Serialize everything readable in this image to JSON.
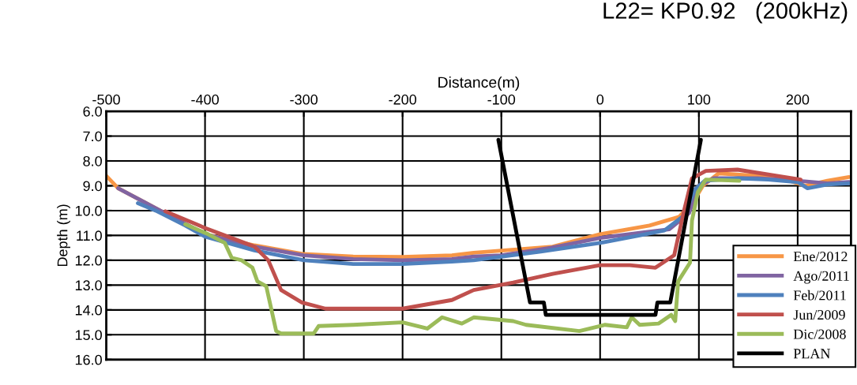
{
  "chart_data": {
    "type": "line",
    "title": "L22= KP0.92   (200kHz)",
    "xlabel": "Distance(m)",
    "ylabel": "Depth (m)",
    "xlim": [
      -500,
      254
    ],
    "xticks": [
      -500,
      -400,
      -300,
      -200,
      -100,
      0,
      100,
      200
    ],
    "ylim": [
      16,
      6
    ],
    "yticks": [
      {
        "value": 6,
        "label": "6.0"
      },
      {
        "value": 7,
        "label": "7.0"
      },
      {
        "value": 8,
        "label": "8.0"
      },
      {
        "value": 9,
        "label": "9.0"
      },
      {
        "value": 10,
        "label": "10.0"
      },
      {
        "value": 11,
        "label": "11.0"
      },
      {
        "value": 12,
        "label": "12.0"
      },
      {
        "value": 13,
        "label": "13.0"
      },
      {
        "value": 14,
        "label": "14.0"
      },
      {
        "value": 15,
        "label": "15.0"
      },
      {
        "value": 16,
        "label": "16.0"
      }
    ],
    "grid": true,
    "legend": "bottom right",
    "marker": "none",
    "line_style": "solid",
    "series": [
      {
        "name": "Ene/2012",
        "color": "#f79646",
        "x": [
          -500,
          -488,
          -450,
          -400,
          -350,
          -300,
          -250,
          -200,
          -150,
          -128,
          -48,
          0,
          50,
          80,
          95,
          104,
          120,
          160,
          192,
          208,
          230,
          252
        ],
        "values": [
          8.6,
          9.1,
          9.9,
          10.95,
          11.4,
          11.75,
          11.85,
          11.87,
          11.8,
          11.7,
          11.45,
          10.95,
          10.6,
          10.25,
          9.6,
          9.0,
          8.5,
          8.6,
          8.8,
          9.0,
          8.8,
          8.65
        ]
      },
      {
        "name": "Ago/2011",
        "color": "#8064a2",
        "x": [
          -488,
          -450,
          -400,
          -350,
          -300,
          -250,
          -200,
          -150,
          -128,
          -100,
          -50,
          0,
          40,
          70,
          90,
          100,
          115,
          160,
          200,
          230,
          252
        ],
        "values": [
          9.1,
          9.9,
          10.95,
          11.45,
          11.8,
          11.95,
          12.0,
          11.95,
          11.85,
          11.8,
          11.5,
          11.1,
          10.9,
          10.75,
          10.1,
          9.0,
          8.7,
          8.7,
          8.8,
          8.9,
          8.85
        ]
      },
      {
        "name": "Feb/2011",
        "color": "#4f81bd",
        "x": [
          -468,
          -450,
          -420,
          -400,
          -350,
          -300,
          -250,
          -200,
          -150,
          -128,
          -60,
          0,
          40,
          65,
          85,
          96,
          106,
          140,
          170,
          200,
          210,
          230,
          252
        ],
        "values": [
          9.7,
          10.0,
          10.6,
          11.05,
          11.6,
          12.0,
          12.15,
          12.15,
          12.05,
          12.0,
          11.65,
          11.3,
          11.0,
          10.8,
          10.2,
          9.15,
          8.8,
          8.7,
          8.75,
          8.85,
          9.1,
          8.95,
          8.9
        ]
      },
      {
        "name": "Jun/2009",
        "color": "#c0504d",
        "x": [
          -440,
          -400,
          -370,
          -350,
          -336,
          -323,
          -302,
          -278,
          -250,
          -200,
          -150,
          -128,
          -88,
          -48,
          0,
          30,
          56,
          75,
          85,
          93,
          107,
          139,
          179,
          203
        ],
        "values": [
          10.03,
          10.7,
          11.15,
          11.45,
          12.0,
          13.2,
          13.7,
          13.95,
          13.95,
          13.95,
          13.6,
          13.2,
          12.9,
          12.55,
          12.2,
          12.2,
          12.3,
          11.8,
          10.0,
          8.7,
          8.4,
          8.35,
          8.6,
          8.75
        ]
      },
      {
        "name": "Dic/2008",
        "color": "#9bbb59",
        "x": [
          -420,
          -397,
          -380,
          -373,
          -363,
          -352,
          -347,
          -338,
          -328,
          -323,
          -290,
          -285,
          -250,
          -200,
          -175,
          -160,
          -140,
          -128,
          -88,
          -75,
          -21,
          5,
          27,
          32,
          40,
          59,
          72,
          76,
          79,
          91,
          93,
          99,
          107,
          141
        ],
        "values": [
          10.55,
          10.95,
          11.3,
          11.9,
          12.0,
          12.3,
          12.85,
          13.05,
          14.85,
          14.95,
          14.95,
          14.65,
          14.6,
          14.5,
          14.75,
          14.3,
          14.55,
          14.3,
          14.45,
          14.6,
          14.85,
          14.6,
          14.7,
          14.3,
          14.6,
          14.55,
          14.2,
          14.45,
          12.85,
          12.1,
          10.4,
          9.25,
          8.75,
          8.8
        ]
      },
      {
        "name": "PLAN",
        "color": "#000000",
        "x": [
          -103,
          -71,
          -57,
          -55,
          56,
          58,
          71,
          102
        ],
        "values": [
          7.15,
          13.7,
          13.7,
          14.2,
          14.2,
          13.7,
          13.7,
          7.15
        ]
      }
    ]
  }
}
